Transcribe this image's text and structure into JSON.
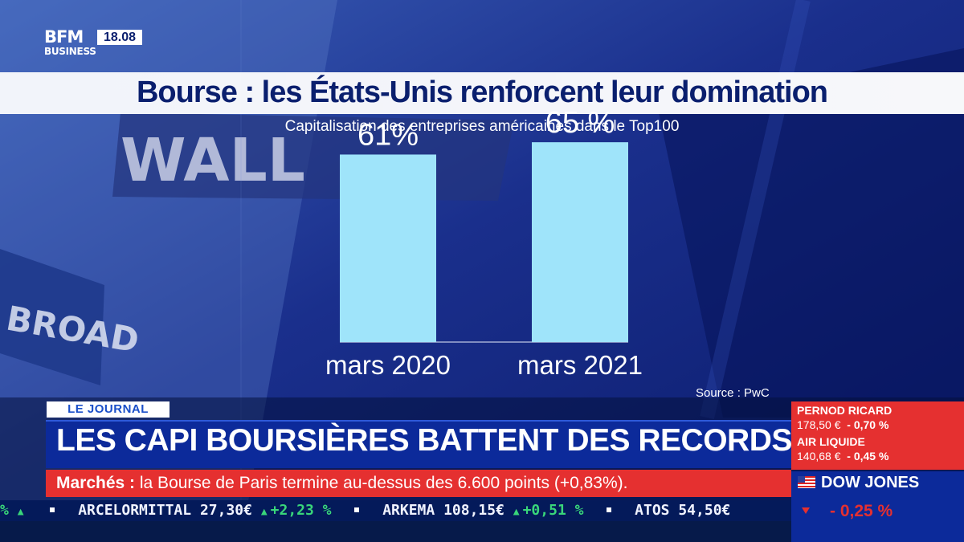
{
  "branding": {
    "logo_top": "BFM",
    "logo_bottom": "BUSINESS",
    "time": "18.08"
  },
  "chart_data": {
    "type": "bar",
    "title": "Bourse : les États-Unis renforcent leur domination",
    "subtitle": "Capitalisation des entreprises américaines dans le Top100",
    "categories": [
      "mars 2020",
      "mars 2021"
    ],
    "values": [
      61,
      65
    ],
    "value_labels": [
      "61%",
      "65 %"
    ],
    "source": "Source : PwC",
    "bar_color": "#9fe4fa",
    "ylim": [
      0,
      70
    ]
  },
  "lower_third": {
    "tag": "LE JOURNAL",
    "headline": "LES CAPI BOURSIÈRES BATTENT DES RECORDS",
    "news_label": "Marchés :",
    "news_text": " la Bourse de Paris termine au-dessus des 6.600 points (+0,83%)."
  },
  "quotes": [
    {
      "name": "PERNOD RICARD",
      "price": "178,50 €",
      "change": "- 0,70 %"
    },
    {
      "name": "AIR LIQUIDE",
      "price": "140,68 €",
      "change": "- 0,45 %"
    }
  ],
  "index": {
    "name": "DOW JONES",
    "change": "- 0,25 %",
    "down_color": "#e53030"
  },
  "ticker": [
    {
      "name": "",
      "price": "",
      "change": "%"
    },
    {
      "name": "ARCELORMITTAL",
      "price": "27,30€",
      "change": "+2,23 %"
    },
    {
      "name": "ARKEMA",
      "price": "108,15€",
      "change": "+0,51 %"
    },
    {
      "name": "ATOS",
      "price": "54,50€",
      "change": ""
    }
  ],
  "colors": {
    "navy": "#0a1f6e",
    "headline_blue": "#0c2a9a",
    "red": "#e53030",
    "ticker_up": "#39d67a"
  }
}
